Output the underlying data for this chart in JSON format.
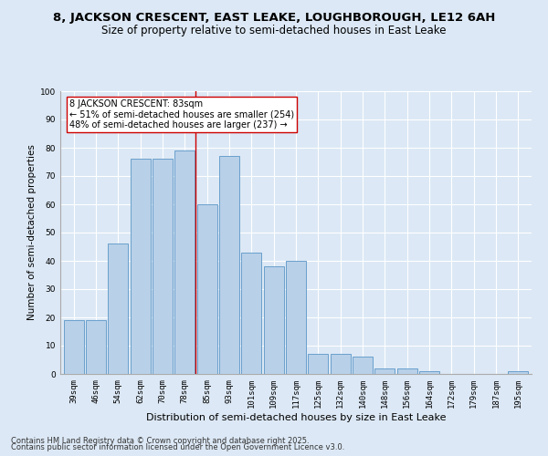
{
  "title1": "8, JACKSON CRESCENT, EAST LEAKE, LOUGHBOROUGH, LE12 6AH",
  "title2": "Size of property relative to semi-detached houses in East Leake",
  "xlabel": "Distribution of semi-detached houses by size in East Leake",
  "ylabel": "Number of semi-detached properties",
  "categories": [
    "39sqm",
    "46sqm",
    "54sqm",
    "62sqm",
    "70sqm",
    "78sqm",
    "85sqm",
    "93sqm",
    "101sqm",
    "109sqm",
    "117sqm",
    "125sqm",
    "132sqm",
    "140sqm",
    "148sqm",
    "156sqm",
    "164sqm",
    "172sqm",
    "179sqm",
    "187sqm",
    "195sqm"
  ],
  "values": [
    19,
    19,
    46,
    76,
    76,
    79,
    60,
    77,
    43,
    38,
    40,
    7,
    7,
    6,
    2,
    2,
    1,
    0,
    0,
    0,
    1
  ],
  "bar_color": "#b8d0e8",
  "bar_edge_color": "#6aa0cc",
  "vline_x_index": 6,
  "vline_color": "#cc0000",
  "annotation_title": "8 JACKSON CRESCENT: 83sqm",
  "annotation_line1": "← 51% of semi-detached houses are smaller (254)",
  "annotation_line2": "48% of semi-detached houses are larger (237) →",
  "annotation_box_color": "#ffffff",
  "annotation_box_edge": "#cc0000",
  "footer1": "Contains HM Land Registry data © Crown copyright and database right 2025.",
  "footer2": "Contains public sector information licensed under the Open Government Licence v3.0.",
  "bg_color": "#dce8f5",
  "plot_bg_color": "#dce8f5",
  "ylim": [
    0,
    100
  ],
  "yticks": [
    0,
    10,
    20,
    30,
    40,
    50,
    60,
    70,
    80,
    90,
    100
  ],
  "title1_fontsize": 9.5,
  "title2_fontsize": 8.5,
  "xlabel_fontsize": 8,
  "ylabel_fontsize": 7.5,
  "tick_fontsize": 6.5,
  "footer_fontsize": 6,
  "annotation_fontsize": 7
}
